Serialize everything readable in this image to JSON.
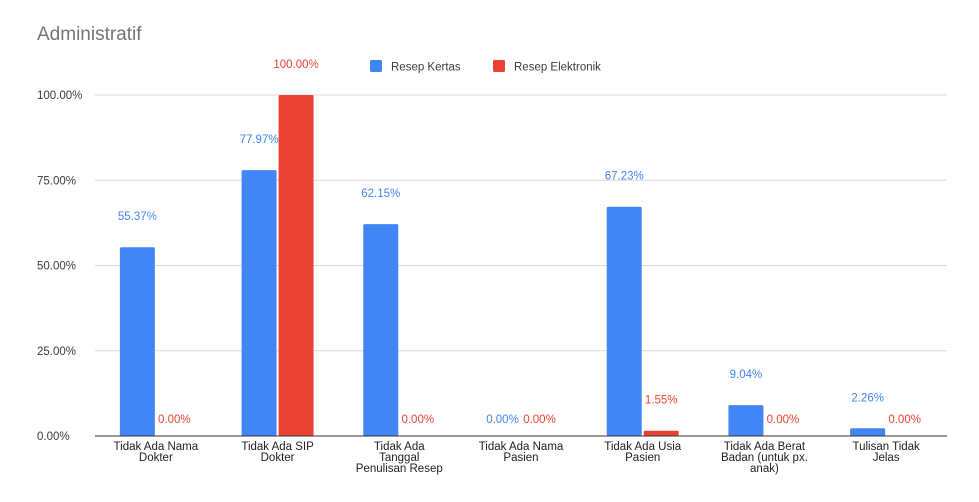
{
  "chart_data": {
    "type": "bar",
    "title": "Administratif",
    "categories": [
      [
        "Tidak Ada Nama",
        "Dokter"
      ],
      [
        "Tidak Ada SIP",
        "Dokter"
      ],
      [
        "Tidak Ada",
        "Tanggal",
        "Penulisan Resep"
      ],
      [
        "Tidak Ada Nama",
        "Pasien"
      ],
      [
        "Tidak Ada Usia",
        "Pasien"
      ],
      [
        "Tidak Ada Berat",
        "Badan (untuk px.",
        "anak)"
      ],
      [
        "Tulisan Tidak",
        "Jelas"
      ]
    ],
    "series": [
      {
        "name": "Resep Kertas",
        "color": "#4285f4",
        "values": [
          55.37,
          77.97,
          62.15,
          0.0,
          67.23,
          9.04,
          2.26
        ],
        "labels": [
          "55.37%",
          "77.97%",
          "62.15%",
          "0.00%",
          "67.23%",
          "9.04%",
          "2.26%"
        ]
      },
      {
        "name": "Resep Elektronik",
        "color": "#ea4335",
        "values": [
          0.0,
          100.0,
          0.0,
          0.0,
          1.55,
          0.0,
          0.0
        ],
        "labels": [
          "0.00%",
          "100.00%",
          "0.00%",
          "0.00%",
          "1.55%",
          "0.00%",
          "0.00%"
        ]
      }
    ],
    "y_ticks": [
      0,
      25,
      50,
      75,
      100
    ],
    "y_tick_labels": [
      "0.00%",
      "25.00%",
      "50.00%",
      "75.00%",
      "100.00%"
    ],
    "ylim": [
      0,
      100
    ],
    "grid": true,
    "legend_position": "top"
  }
}
